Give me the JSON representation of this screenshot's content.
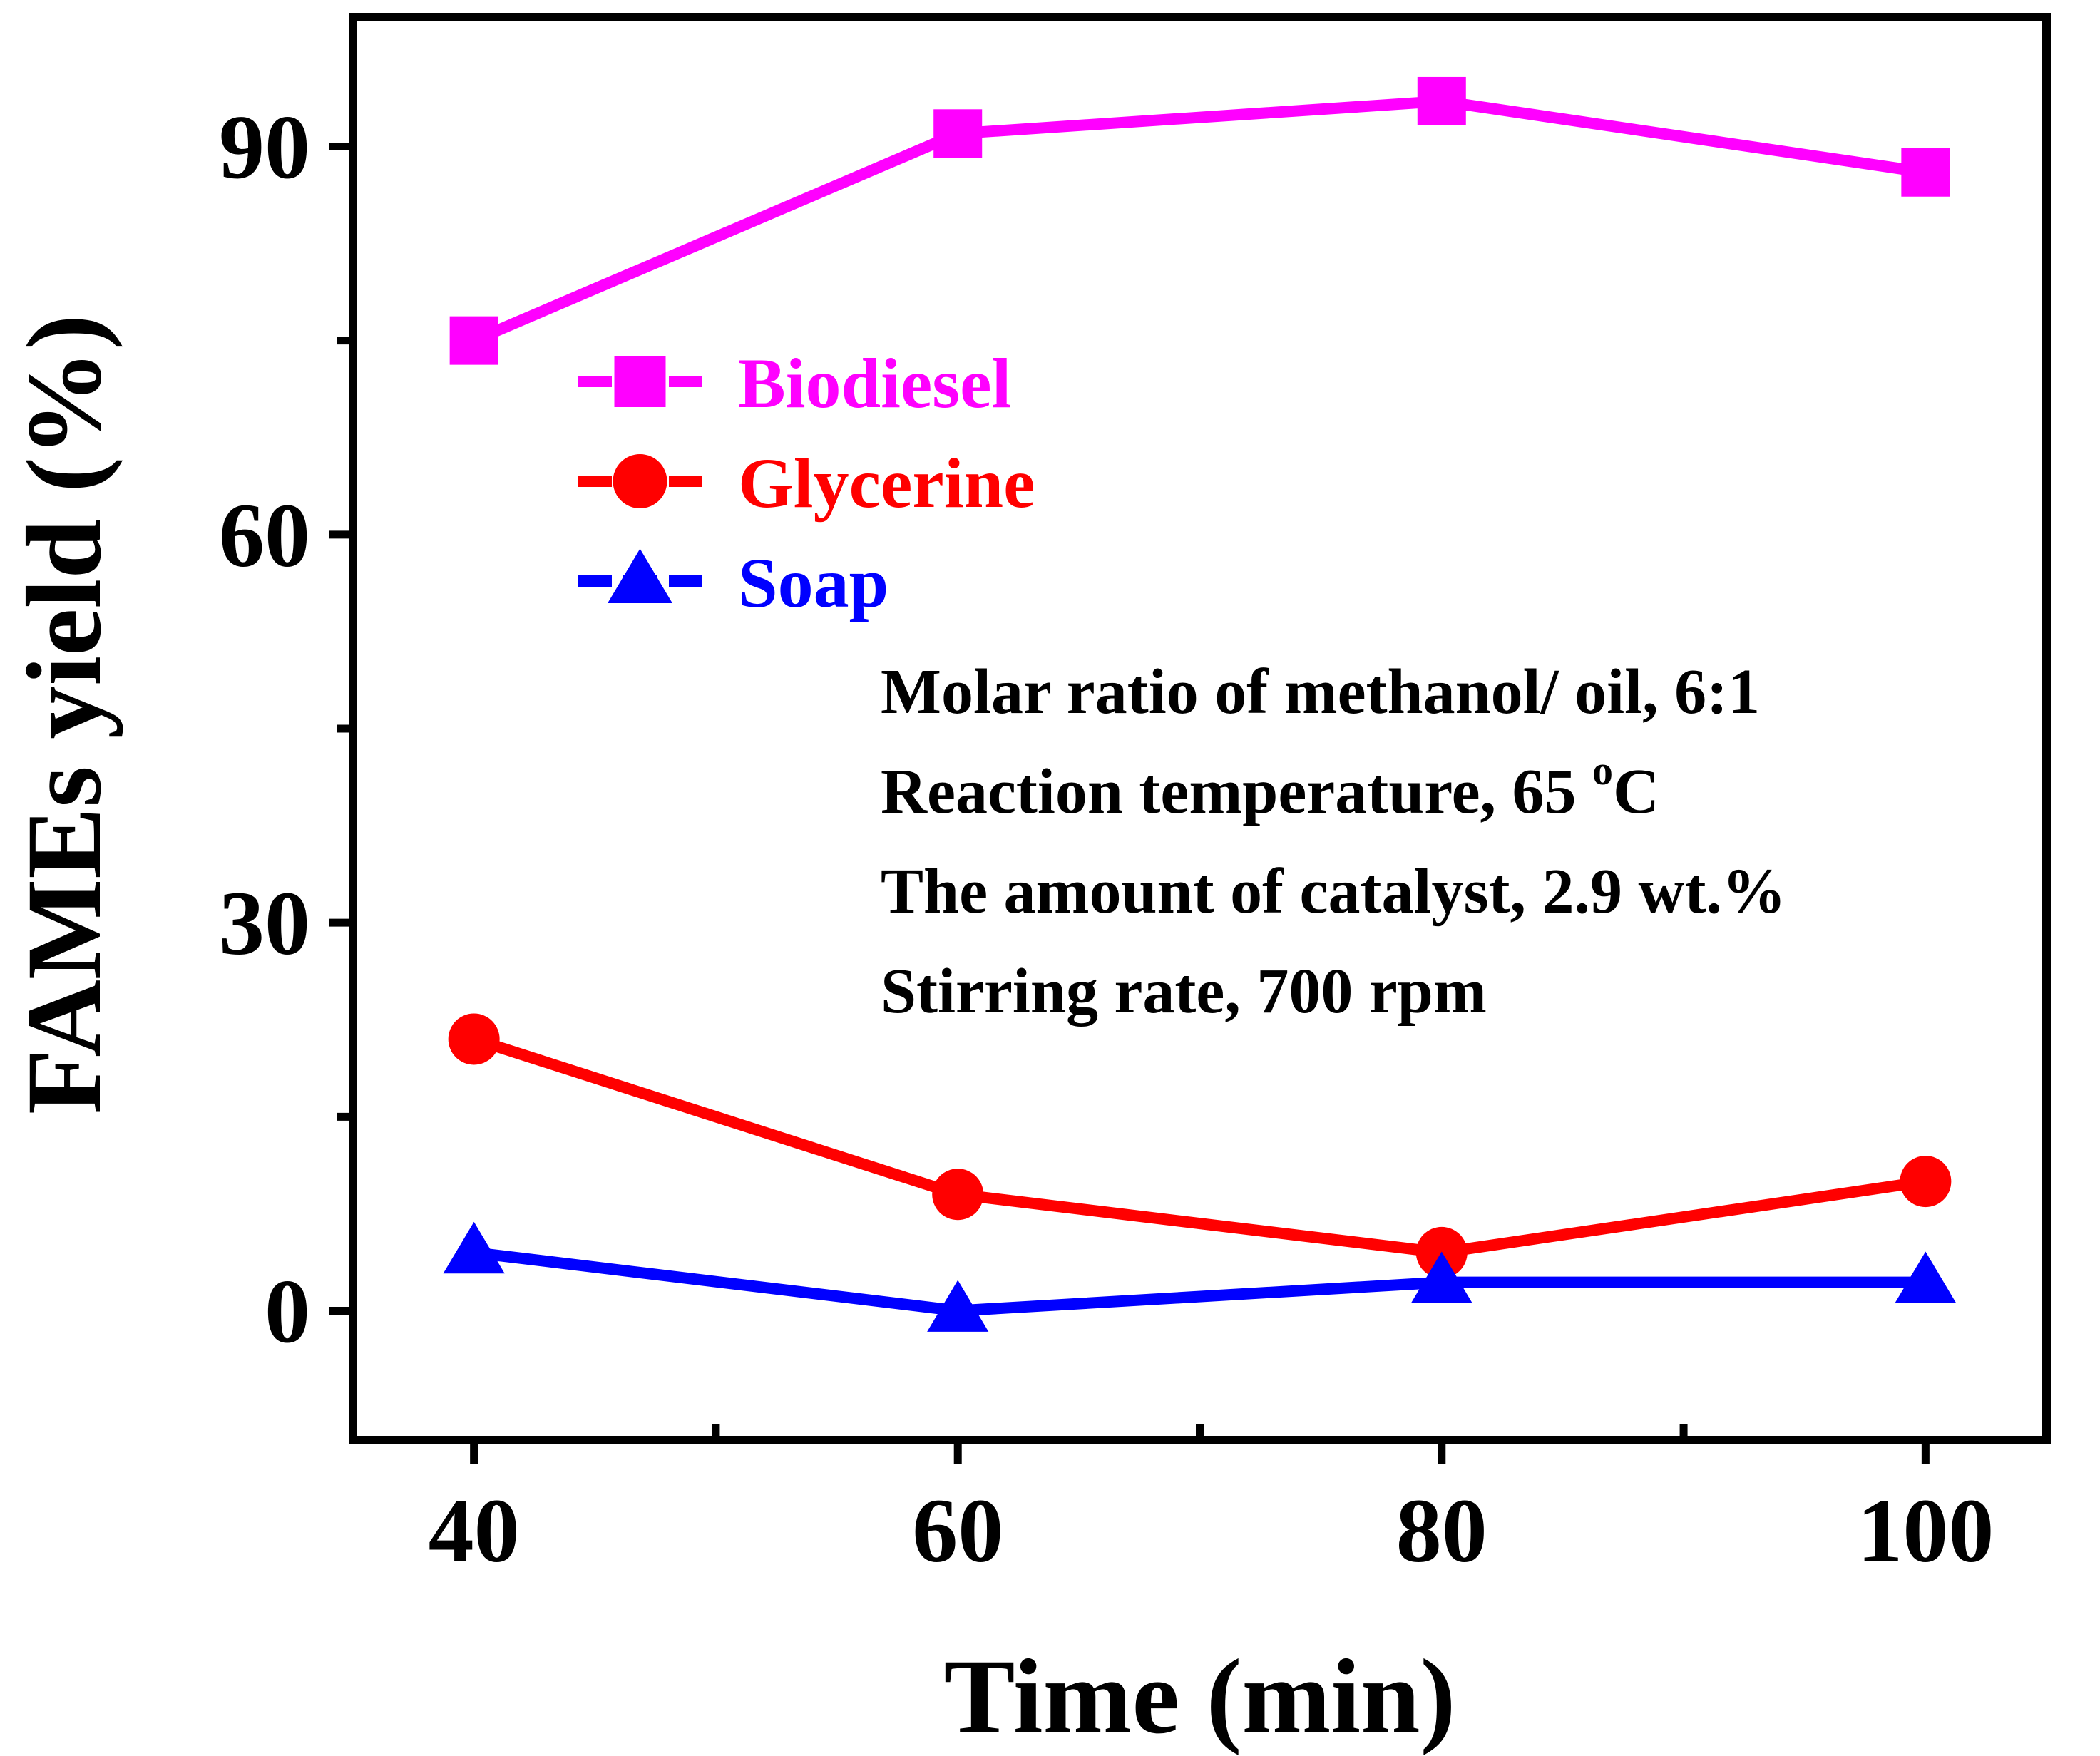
{
  "chart_data": {
    "type": "line",
    "title": "",
    "xlabel": "Time (min)",
    "ylabel": "FAMEs yield (%)",
    "x": [
      40,
      60,
      80,
      100
    ],
    "xlim": [
      35,
      105
    ],
    "ylim": [
      -10,
      100
    ],
    "x_ticks": [
      40,
      60,
      80,
      100
    ],
    "x_tick_labels": [
      "40",
      "60",
      "80",
      "100"
    ],
    "y_ticks": [
      0,
      30,
      60,
      90
    ],
    "y_tick_labels": [
      "0",
      "30",
      "60",
      "90"
    ],
    "x_minor_ticks": [
      50,
      70,
      90
    ],
    "y_minor_ticks": [
      15,
      45,
      75
    ],
    "grid": false,
    "legend_position": "upper-left",
    "series": [
      {
        "name": "Biodiesel",
        "marker": "square",
        "color": "#ff00ff",
        "values": [
          75,
          91,
          93.5,
          88
        ]
      },
      {
        "name": "Glycerine",
        "marker": "circle",
        "color": "#ff0000",
        "values": [
          21,
          9,
          4.5,
          10
        ]
      },
      {
        "name": "Soap",
        "marker": "triangle",
        "color": "#0000ff",
        "values": [
          4.5,
          0,
          2.2,
          2.2
        ]
      }
    ],
    "annotations": [
      {
        "text": "Molar ratio of methanol/ oil, 6:1"
      },
      {
        "text": "Reaction temperature, 65 ",
        "superscript": "o",
        "suffix": "C"
      },
      {
        "text": "The amount of catalyst, 2.9 wt.%"
      },
      {
        "text": "Stirring rate, 700 rpm"
      }
    ]
  }
}
